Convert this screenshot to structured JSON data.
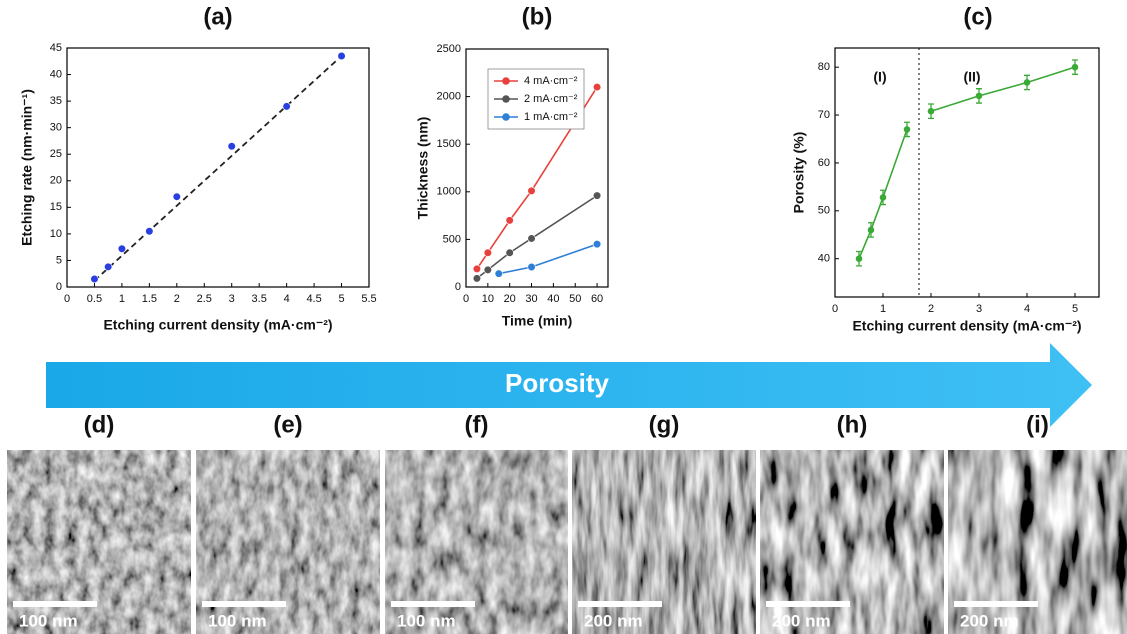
{
  "chart_data": [
    {
      "type": "scatter",
      "title": "(a)",
      "xlabel": "Etching current density (mA·cm⁻²)",
      "ylabel": "Etching rate (nm·min⁻¹)",
      "xlim": [
        0,
        5.5
      ],
      "xticks": [
        0,
        0.5,
        1,
        1.5,
        2,
        2.5,
        3,
        3.5,
        4,
        4.5,
        5,
        5.5
      ],
      "ylim": [
        0,
        45
      ],
      "yticks": [
        0,
        5,
        10,
        15,
        20,
        25,
        30,
        35,
        40,
        45
      ],
      "series": [
        {
          "color": "#2a3fe0",
          "x": [
            0.5,
            0.75,
            1,
            1.5,
            2,
            3,
            4,
            5
          ],
          "values": [
            1.5,
            3.8,
            7.2,
            10.5,
            17,
            26.5,
            34,
            43.5
          ]
        }
      ],
      "fit_line": {
        "color": "#222222",
        "x": [
          0.5,
          5
        ],
        "values": [
          1.2,
          43.5
        ]
      }
    },
    {
      "type": "line",
      "title": "(b)",
      "xlabel": "Time (min)",
      "ylabel": "Thickness (nm)",
      "xlim": [
        0,
        65
      ],
      "xticks": [
        0,
        10,
        20,
        30,
        40,
        50,
        60
      ],
      "ylim": [
        0,
        2500
      ],
      "yticks": [
        0,
        500,
        1000,
        1500,
        2000,
        2500
      ],
      "legend": "upper left",
      "series": [
        {
          "name": "4 mA·cm⁻²",
          "color": "#e8403c",
          "x": [
            5,
            10,
            20,
            30,
            60
          ],
          "values": [
            190,
            360,
            700,
            1010,
            2100
          ]
        },
        {
          "name": "2 mA·cm⁻²",
          "color": "#555555",
          "x": [
            5,
            10,
            20,
            30,
            60
          ],
          "values": [
            90,
            180,
            360,
            510,
            960
          ]
        },
        {
          "name": "1 mA·cm⁻²",
          "color": "#2f7fd6",
          "x": [
            15,
            30,
            60
          ],
          "values": [
            140,
            210,
            450
          ]
        }
      ]
    },
    {
      "type": "line",
      "title": "(c)",
      "xlabel": "Etching current density (mA·cm⁻²)",
      "ylabel": "Porosity (%)",
      "xlim": [
        0,
        5.5
      ],
      "xticks": [
        0,
        1,
        2,
        3,
        4,
        5
      ],
      "ylim": [
        32,
        84
      ],
      "yticks": [
        40,
        50,
        60,
        70,
        80
      ],
      "divider_x": 1.75,
      "annotations": [
        "(I)",
        "(II)"
      ],
      "series": [
        {
          "color": "#3aa935",
          "x": [
            0.5,
            0.75,
            1,
            1.5
          ],
          "values": [
            40,
            46,
            52.8,
            67
          ],
          "errors": [
            1.5,
            1.5,
            1.5,
            1.5
          ]
        },
        {
          "color": "#3aa935",
          "x": [
            2,
            3,
            4,
            5
          ],
          "values": [
            70.8,
            74,
            76.8,
            80
          ],
          "errors": [
            1.5,
            1.5,
            1.5,
            1.5
          ]
        }
      ]
    }
  ],
  "arrow_label": "Porosity",
  "panels": [
    {
      "label": "(d)",
      "scale_bar": "100 nm"
    },
    {
      "label": "(e)",
      "scale_bar": "100 nm"
    },
    {
      "label": "(f)",
      "scale_bar": "100 nm"
    },
    {
      "label": "(g)",
      "scale_bar": "200 nm"
    },
    {
      "label": "(h)",
      "scale_bar": "200 nm"
    },
    {
      "label": "(i)",
      "scale_bar": "200 nm"
    }
  ]
}
